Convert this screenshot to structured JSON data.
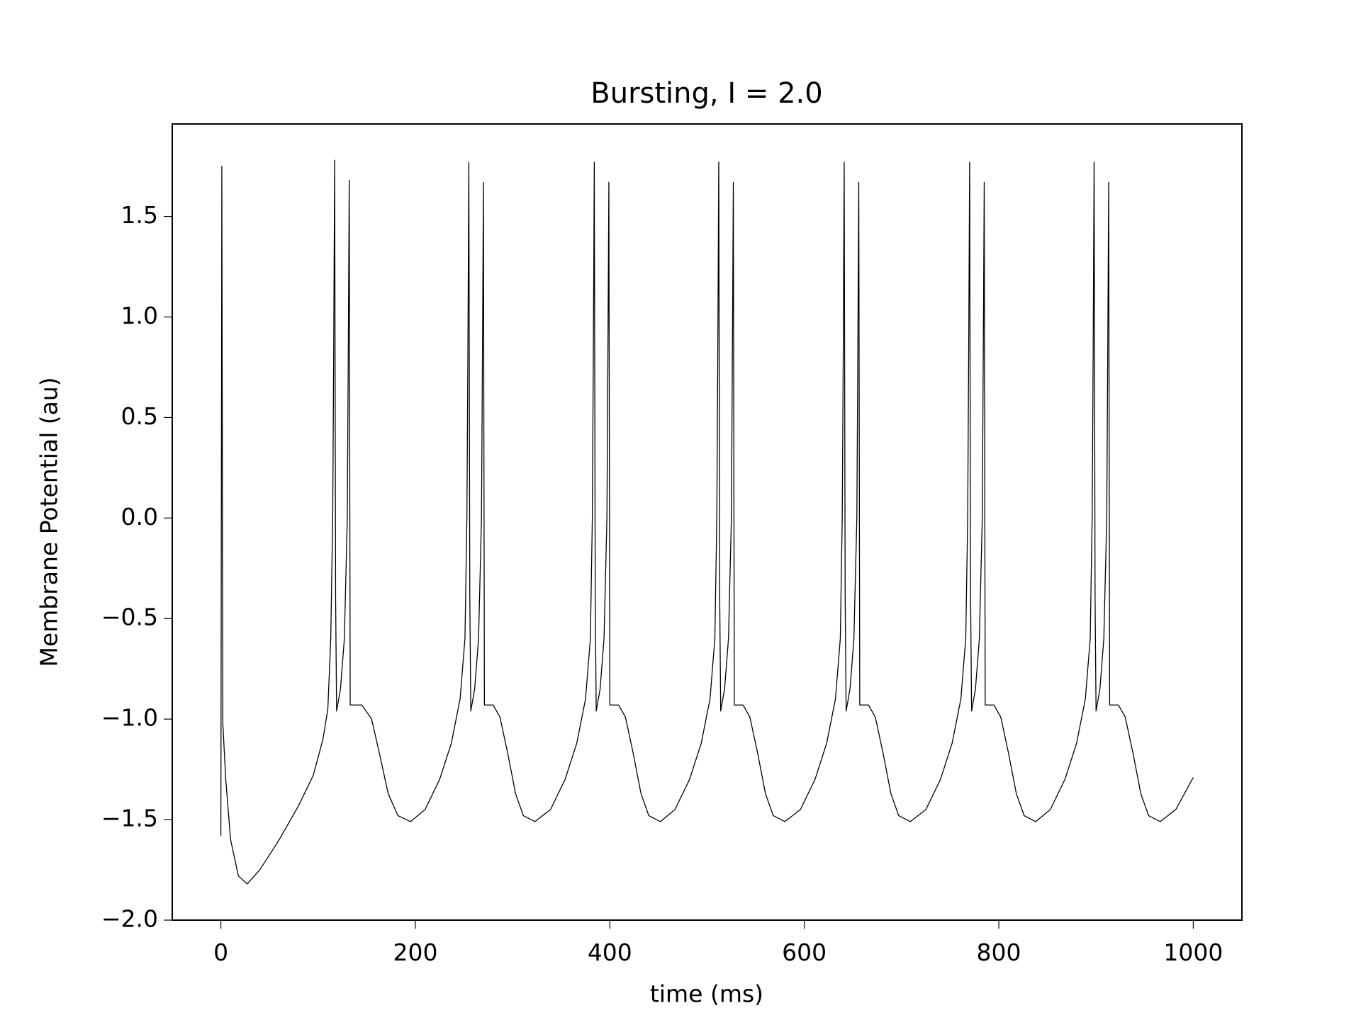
{
  "chart_data": {
    "type": "line",
    "title": "Bursting, I = 2.0",
    "xlabel": "time (ms)",
    "ylabel": "Membrane Potential (au)",
    "color": "#000000",
    "xlim": [
      -50,
      1050
    ],
    "ylim": [
      -2.0,
      1.96
    ],
    "xticks": [
      0,
      200,
      400,
      600,
      800,
      1000
    ],
    "yticks": [
      {
        "value": -2.0,
        "label": "−2.0"
      },
      {
        "value": -1.5,
        "label": "−1.5"
      },
      {
        "value": -1.0,
        "label": "−1.0"
      },
      {
        "value": -0.5,
        "label": "−0.5"
      },
      {
        "value": 0.0,
        "label": "0.0"
      },
      0.5,
      {
        "value": 1.0,
        "label": "1.0"
      },
      1.5
    ],
    "x": [
      0,
      1,
      2,
      5,
      10,
      18,
      27,
      40,
      60,
      80,
      95,
      105,
      110,
      113,
      115,
      116,
      117,
      118,
      119,
      123,
      127,
      130,
      131,
      132,
      133,
      145,
      155,
      163,
      172,
      182,
      195,
      210,
      225,
      237,
      246,
      251,
      253,
      254,
      255,
      256,
      257,
      261,
      265,
      268,
      269,
      270,
      271,
      280,
      287,
      295,
      303,
      311,
      323,
      339,
      354,
      366,
      375,
      380,
      382,
      383,
      384,
      385,
      386,
      390,
      394,
      397,
      398,
      399,
      400,
      409,
      416,
      424,
      432,
      440,
      452,
      467,
      482,
      494,
      503,
      508,
      510,
      511,
      512,
      513,
      514,
      518,
      522,
      525,
      526,
      527,
      528,
      537,
      544,
      552,
      560,
      568,
      580,
      596,
      611,
      623,
      632,
      637,
      639,
      640,
      641,
      642,
      643,
      647,
      651,
      654,
      655,
      656,
      657,
      666,
      673,
      681,
      689,
      697,
      709,
      725,
      740,
      752,
      761,
      766,
      768,
      769,
      770,
      771,
      772,
      776,
      780,
      783,
      784,
      785,
      786,
      795,
      802,
      810,
      818,
      826,
      838,
      853,
      868,
      880,
      889,
      894,
      896,
      897,
      898,
      899,
      900,
      904,
      908,
      911,
      912,
      913,
      914,
      923,
      930,
      938,
      946,
      954,
      966,
      982,
      1000
    ],
    "values": [
      -1.58,
      1.75,
      -1.02,
      -1.3,
      -1.6,
      -1.78,
      -1.82,
      -1.75,
      -1.6,
      -1.43,
      -1.28,
      -1.1,
      -0.95,
      -0.6,
      0.0,
      0.8,
      1.78,
      -0.4,
      -0.96,
      -0.85,
      -0.6,
      0.0,
      0.8,
      1.68,
      -0.93,
      -0.93,
      -1.0,
      -1.17,
      -1.37,
      -1.48,
      -1.51,
      -1.45,
      -1.3,
      -1.12,
      -0.9,
      -0.6,
      0.0,
      0.8,
      1.77,
      -0.4,
      -0.96,
      -0.85,
      -0.6,
      0.0,
      0.8,
      1.67,
      -0.93,
      -0.93,
      -0.99,
      -1.17,
      -1.37,
      -1.48,
      -1.51,
      -1.45,
      -1.3,
      -1.12,
      -0.9,
      -0.6,
      0.0,
      0.8,
      1.77,
      -0.4,
      -0.96,
      -0.85,
      -0.6,
      0.0,
      0.8,
      1.67,
      -0.93,
      -0.93,
      -0.99,
      -1.17,
      -1.37,
      -1.48,
      -1.51,
      -1.45,
      -1.3,
      -1.12,
      -0.9,
      -0.6,
      0.0,
      0.8,
      1.77,
      -0.4,
      -0.96,
      -0.85,
      -0.6,
      0.0,
      0.8,
      1.67,
      -0.93,
      -0.93,
      -0.99,
      -1.17,
      -1.37,
      -1.48,
      -1.51,
      -1.45,
      -1.3,
      -1.12,
      -0.9,
      -0.6,
      0.0,
      0.8,
      1.77,
      -0.4,
      -0.96,
      -0.85,
      -0.6,
      0.0,
      0.8,
      1.67,
      -0.93,
      -0.93,
      -0.99,
      -1.17,
      -1.37,
      -1.48,
      -1.51,
      -1.45,
      -1.3,
      -1.12,
      -0.9,
      -0.6,
      0.0,
      0.8,
      1.77,
      -0.4,
      -0.96,
      -0.85,
      -0.6,
      0.0,
      0.8,
      1.67,
      -0.93,
      -0.93,
      -0.99,
      -1.17,
      -1.37,
      -1.48,
      -1.51,
      -1.45,
      -1.3,
      -1.12,
      -0.9,
      -0.6,
      0.0,
      0.8,
      1.77,
      -0.4,
      -0.96,
      -0.85,
      -0.6,
      0.0,
      0.8,
      1.67,
      -0.93,
      -0.93,
      -0.99,
      -1.17,
      -1.37,
      -1.48,
      -1.51,
      -1.45,
      -1.29
    ]
  }
}
